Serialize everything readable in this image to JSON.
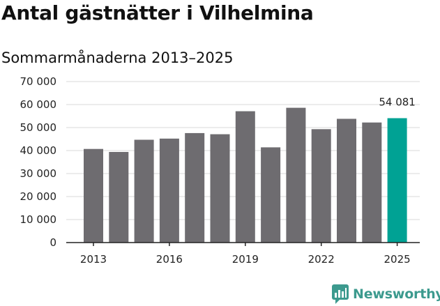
{
  "header": {
    "title": "Antal gästnätter i Vilhelmina",
    "subtitle": "Sommarmånaderna 2013–2025"
  },
  "brand": {
    "name": "Newsworthy",
    "logo_icon": "bar-chart-bubble-icon"
  },
  "colors": {
    "bar": "#6e6c70",
    "highlight": "#00a294",
    "brand": "#3c9a8e",
    "grid": "#d8d8d8"
  },
  "chart_data": {
    "type": "bar",
    "categories": [
      "2013",
      "2014",
      "2015",
      "2016",
      "2017",
      "2018",
      "2019",
      "2020",
      "2021",
      "2022",
      "2023",
      "2024",
      "2025"
    ],
    "values": [
      40700,
      39400,
      44700,
      45200,
      47600,
      47100,
      57100,
      41400,
      58600,
      49300,
      53800,
      52200,
      54081
    ],
    "highlight_index": 12,
    "data_labels": [
      {
        "index": 12,
        "text": "54 081"
      }
    ],
    "x_tick_labels": [
      "2013",
      "2016",
      "2019",
      "2022",
      "2025"
    ],
    "y_ticks": [
      0,
      10000,
      20000,
      30000,
      40000,
      50000,
      60000,
      70000
    ],
    "y_tick_labels": [
      "0",
      "10 000",
      "20 000",
      "30 000",
      "40 000",
      "50 000",
      "60 000",
      "70 000"
    ],
    "ylim": [
      0,
      70000
    ],
    "grid": true,
    "legend": "none"
  }
}
